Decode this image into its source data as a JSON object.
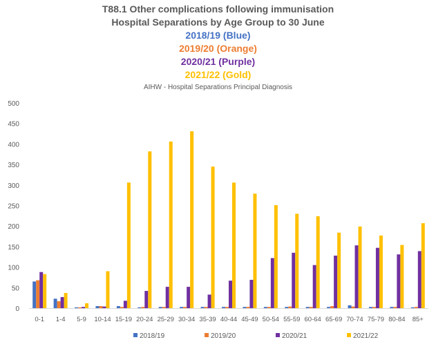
{
  "chart_data": {
    "type": "bar",
    "title": "T88.1 Other complications following immunisation",
    "subtitle": "Hospital Separations by Age Group to 30 June",
    "period_lines": [
      {
        "text": "2018/19 (Blue)",
        "color": "#4472C4"
      },
      {
        "text": "2019/20 (Orange)",
        "color": "#ED7D31"
      },
      {
        "text": "2020/21 (Purple)",
        "color": "#7030A0"
      },
      {
        "text": "2021/22 (Gold)",
        "color": "#FFC000"
      }
    ],
    "source": "AIHW - Hospital Separations Principal Diagnosis",
    "categories": [
      "0-1",
      "1-4",
      "5-9",
      "10-14",
      "15-19",
      "20-24",
      "25-29",
      "30-34",
      "35-39",
      "40-44",
      "45-49",
      "50-54",
      "55-59",
      "60-64",
      "65-69",
      "70-74",
      "75-79",
      "80-84",
      "85+"
    ],
    "series": [
      {
        "name": "2018/19",
        "color": "#4472C4",
        "values": [
          65,
          23,
          2,
          5,
          5,
          2,
          3,
          3,
          3,
          3,
          3,
          3,
          3,
          3,
          3,
          7,
          3,
          3,
          2
        ]
      },
      {
        "name": "2019/20",
        "color": "#ED7D31",
        "values": [
          68,
          17,
          2,
          5,
          3,
          3,
          3,
          3,
          3,
          3,
          3,
          3,
          4,
          3,
          5,
          4,
          3,
          3,
          3
        ]
      },
      {
        "name": "2020/21",
        "color": "#7030A0",
        "values": [
          88,
          27,
          3,
          4,
          18,
          42,
          52,
          52,
          33,
          67,
          69,
          122,
          135,
          105,
          128,
          153,
          147,
          131,
          139
        ]
      },
      {
        "name": "2021/22",
        "color": "#FFC000",
        "values": [
          83,
          37,
          12,
          90,
          306,
          382,
          406,
          431,
          345,
          306,
          279,
          251,
          230,
          224,
          184,
          199,
          177,
          154,
          207
        ]
      }
    ],
    "ylim": [
      0,
      500
    ],
    "yticks": [
      0,
      50,
      100,
      150,
      200,
      250,
      300,
      350,
      400,
      450,
      500
    ],
    "grid": false,
    "legend": "bottom"
  }
}
